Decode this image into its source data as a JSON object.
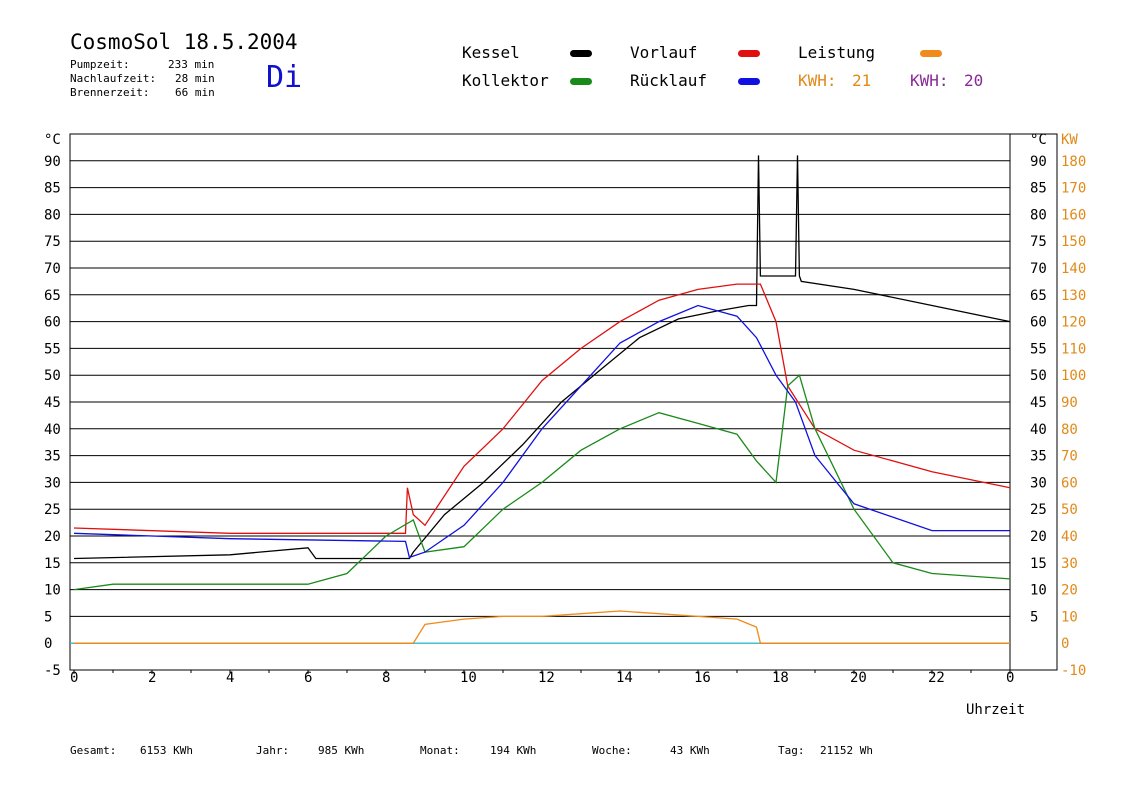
{
  "header": {
    "title": "CosmoSol 18.5.2004",
    "day": "Di",
    "stats": [
      {
        "label": "Pumpzeit:",
        "value": "233 min"
      },
      {
        "label": "Nachlaufzeit:",
        "value": "28 min"
      },
      {
        "label": "Brennerzeit:",
        "value": "66 min"
      }
    ]
  },
  "legend": {
    "kessel": {
      "label": "Kessel",
      "color": "#000000"
    },
    "vorlauf": {
      "label": "Vorlauf",
      "color": "#e01010"
    },
    "leistung": {
      "label": "Leistung",
      "color": "#f08a1a"
    },
    "kollektor": {
      "label": "Kollektor",
      "color": "#1a8a1a"
    },
    "ruecklauf": {
      "label": "Rücklauf",
      "color": "#1010e0"
    },
    "kwh1": {
      "label": "KWH:",
      "value": "21",
      "color": "#e08a1a"
    },
    "kwh2": {
      "label": "KWH:",
      "value": "20",
      "color": "#8a2a9a"
    }
  },
  "footer": [
    {
      "label": "Gesamt:",
      "value": "6153 KWh"
    },
    {
      "label": "Jahr:",
      "value": "985 KWh"
    },
    {
      "label": "Monat:",
      "value": "194 KWh"
    },
    {
      "label": "Woche:",
      "value": "43 KWh"
    },
    {
      "label": "Tag:",
      "value": "21152 Wh"
    }
  ],
  "chart_data": {
    "type": "line",
    "xlabel": "Uhrzeit",
    "ylabel": "°C",
    "ylabel_right": "KW",
    "xlim": [
      0,
      24
    ],
    "ylim": [
      -5,
      95
    ],
    "ylim_right": [
      -10,
      190
    ],
    "x_ticks": [
      "0",
      "2",
      "4",
      "6",
      "8",
      "10",
      "12",
      "14",
      "16",
      "18",
      "20",
      "22",
      "0"
    ],
    "x_tick_values": [
      0,
      2,
      4,
      6,
      8,
      10,
      12,
      14,
      16,
      18,
      20,
      22,
      24
    ],
    "y_ticks": [
      "-5",
      "0",
      "5",
      "10",
      "15",
      "20",
      "25",
      "30",
      "35",
      "40",
      "45",
      "50",
      "55",
      "60",
      "65",
      "70",
      "75",
      "80",
      "85",
      "90"
    ],
    "y_ticks_right_c": [
      "5",
      "10",
      "15",
      "20",
      "25",
      "30",
      "35",
      "40",
      "45",
      "50",
      "55",
      "60",
      "65",
      "70",
      "75",
      "80",
      "85",
      "90"
    ],
    "y_ticks_right_kw": [
      "-10",
      "0",
      "10",
      "20",
      "30",
      "40",
      "50",
      "60",
      "70",
      "80",
      "90",
      "100",
      "110",
      "120",
      "130",
      "140",
      "150",
      "160",
      "170",
      "180"
    ],
    "grid": true,
    "series": [
      {
        "name": "Kessel",
        "color": "#000000",
        "x": [
          0,
          4,
          6,
          6.2,
          8.6,
          8.7,
          9.5,
          10.5,
          11.5,
          12.5,
          13.5,
          14.5,
          15.5,
          16.5,
          17.3,
          17.5,
          17.55,
          17.6,
          17.65,
          18.5,
          18.55,
          18.6,
          18.65,
          20,
          22,
          24
        ],
        "y": [
          15.8,
          16.5,
          17.8,
          15.8,
          15.8,
          17,
          24,
          30,
          37,
          45,
          51,
          57,
          60.5,
          62,
          63,
          63,
          91,
          68.5,
          68.5,
          68.5,
          91,
          68.5,
          67.5,
          66,
          63,
          60
        ]
      },
      {
        "name": "Vorlauf",
        "color": "#e01010",
        "x": [
          0,
          4,
          8.5,
          8.55,
          8.7,
          9,
          10,
          11,
          12,
          13,
          14,
          15,
          16,
          17,
          17.6,
          18,
          18.3,
          19,
          20,
          22,
          24
        ],
        "y": [
          21.5,
          20.5,
          20.5,
          29,
          24,
          22,
          33,
          40,
          49,
          55,
          60,
          64,
          66,
          67,
          67,
          60,
          48,
          40,
          36,
          32,
          29
        ]
      },
      {
        "name": "Kollektor",
        "color": "#1a8a1a",
        "x": [
          0,
          1,
          4,
          6,
          7,
          8,
          8.7,
          9,
          10,
          11,
          12,
          13,
          14,
          15,
          16,
          17,
          17.5,
          18,
          18.3,
          18.6,
          19,
          20,
          21,
          22,
          24
        ],
        "y": [
          10,
          11,
          11,
          11,
          13,
          20,
          23,
          17,
          18,
          25,
          30,
          36,
          40,
          43,
          41,
          39,
          34,
          30,
          48,
          50,
          40,
          25,
          15,
          13,
          12
        ]
      },
      {
        "name": "Rücklauf",
        "color": "#1010e0",
        "x": [
          0,
          4,
          8.5,
          8.6,
          9,
          10,
          11,
          12,
          13,
          14,
          15,
          16,
          17,
          17.5,
          18,
          18.5,
          19,
          20,
          22,
          24
        ],
        "y": [
          20.5,
          19.5,
          19,
          16,
          17,
          22,
          30,
          40,
          48,
          56,
          60,
          63,
          61,
          57,
          50,
          45,
          35,
          26,
          21,
          21
        ]
      },
      {
        "name": "Leistung",
        "color": "#f08a1a",
        "x": [
          0,
          8.7,
          9,
          10,
          11,
          12,
          13,
          14,
          15,
          16,
          17,
          17.5,
          17.6,
          17.7,
          18.5,
          18.6,
          18.7,
          24
        ],
        "y": [
          0,
          0,
          7,
          9,
          10,
          10,
          11,
          12,
          11,
          10,
          9,
          6,
          0,
          0,
          0,
          0,
          0,
          0
        ]
      }
    ]
  }
}
